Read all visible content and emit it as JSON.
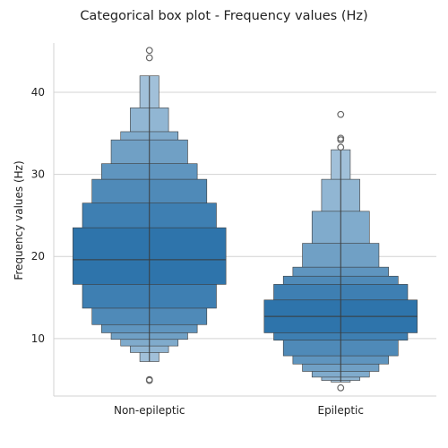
{
  "chart_data": {
    "type": "boxenplot",
    "title": "Categorical box plot - Frequency values (Hz)",
    "xlabel": "",
    "ylabel": "Frequency values (Hz)",
    "ylim": [
      3,
      46
    ],
    "yticks": [
      10,
      20,
      30,
      40
    ],
    "grid": "horizontal",
    "colors": {
      "base": "#2e74ab",
      "grid": "#d3d3d3",
      "edge": "#3a3a3a"
    },
    "categories": [
      "Non-epileptic",
      "Epileptic"
    ],
    "groups": [
      {
        "name": "Non-epileptic",
        "median": 19.6,
        "boxes": [
          [
            16.6,
            23.5
          ],
          [
            13.7,
            26.5
          ],
          [
            11.7,
            29.4
          ],
          [
            10.7,
            31.3
          ],
          [
            9.9,
            34.2
          ],
          [
            9.1,
            35.2
          ],
          [
            8.3,
            38.1
          ],
          [
            7.2,
            42.0
          ]
        ],
        "outliers": [
          45.1,
          44.2,
          5.0,
          4.9
        ]
      },
      {
        "name": "Epileptic",
        "median": 12.7,
        "boxes": [
          [
            10.7,
            14.7
          ],
          [
            9.8,
            16.6
          ],
          [
            7.9,
            17.6
          ],
          [
            6.9,
            18.7
          ],
          [
            6.0,
            21.6
          ],
          [
            5.3,
            25.5
          ],
          [
            4.9,
            29.4
          ],
          [
            4.7,
            33.0
          ]
        ],
        "outliers": [
          37.3,
          34.4,
          34.2,
          33.3,
          4.0
        ]
      }
    ]
  }
}
